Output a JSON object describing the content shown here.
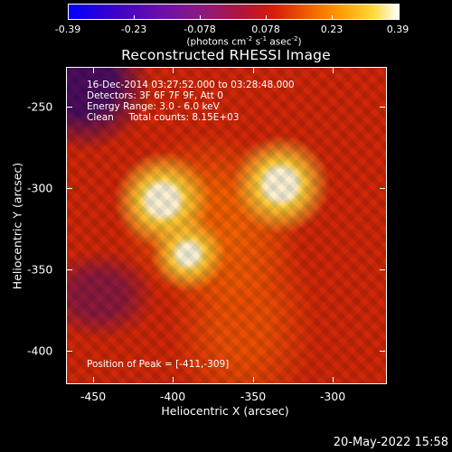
{
  "colorbar": {
    "tick_labels": [
      "-0.39",
      "-0.23",
      "-0.078",
      "0.078",
      "0.23",
      "0.39"
    ],
    "units_prefix": "(photons cm",
    "units_exp1": "-2",
    "units_mid": " s",
    "units_exp2": "-1",
    "units_mid2": " asec",
    "units_exp3": "-2",
    "units_suffix": ")"
  },
  "title": "Reconstructed RHESSI Image",
  "info": {
    "time_range": "16-Dec-2014 03:27:52.000 to 03:28:48.000",
    "detectors": "Detectors: 3F 6F 7F 9F, Att 0",
    "energy_range": "Energy Range: 3.0 - 6.0 keV",
    "clean_counts": "Clean     Total counts: 8.15E+03",
    "peak_position": "Position of Peak = [-411,-309]"
  },
  "x_axis": {
    "label": "Heliocentric X (arcsec)",
    "tick_labels": [
      "-450",
      "-400",
      "-350",
      "-300"
    ]
  },
  "y_axis": {
    "label": "Heliocentric Y (arcsec)",
    "tick_labels": [
      "-250",
      "-300",
      "-350",
      "-400"
    ]
  },
  "timestamp": "20-May-2022 15:58",
  "colors": {
    "background": "#000000",
    "text": "#ffffff",
    "colormap": [
      "#0000ff",
      "#6a10a8",
      "#b0143c",
      "#d81a0a",
      "#ff9a00",
      "#ffd832",
      "#ffffff"
    ]
  }
}
